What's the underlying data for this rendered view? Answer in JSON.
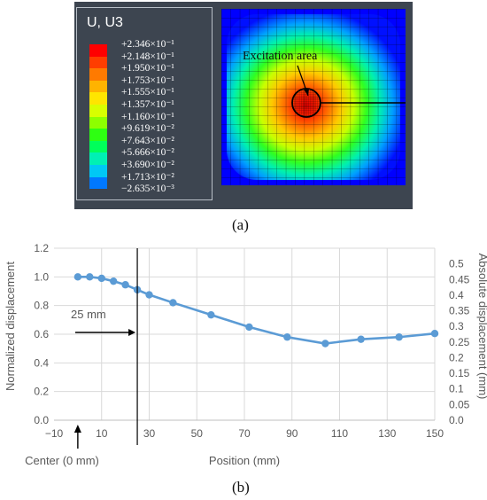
{
  "panel_a": {
    "legend_title": "U, U3",
    "legend_levels": [
      "+2.346×10⁻¹",
      "+2.148×10⁻¹",
      "+1.950×10⁻¹",
      "+1.753×10⁻¹",
      "+1.555×10⁻¹",
      "+1.357×10⁻¹",
      "+1.160×10⁻¹",
      "+9.619×10⁻²",
      "+7.643×10⁻²",
      "+5.666×10⁻²",
      "+3.690×10⁻²",
      "+1.713×10⁻²",
      "−2.635×10⁻³"
    ],
    "legend_colors": [
      "#ff0000",
      "#ff3d00",
      "#ff7a00",
      "#ffb300",
      "#ffe500",
      "#d8ff00",
      "#8dff00",
      "#2eff12",
      "#00ff5a",
      "#00f0b4",
      "#00c8f5",
      "#0078ff",
      "#0000ff"
    ],
    "annotation": "Excitation area",
    "caption": "(a)"
  },
  "chart_data": {
    "type": "line",
    "x": [
      0,
      5,
      10,
      15,
      20,
      25,
      30,
      40,
      56,
      72,
      88,
      104,
      119,
      135,
      150
    ],
    "series": [
      {
        "values": [
          1.0,
          1.0,
          0.99,
          0.97,
          0.945,
          0.91,
          0.875,
          0.82,
          0.735,
          0.65,
          0.58,
          0.535,
          0.565,
          0.58,
          0.605
        ]
      }
    ],
    "xlim": [
      -10,
      150
    ],
    "xticks": [
      "−10",
      "10",
      "30",
      "50",
      "70",
      "90",
      "110",
      "130",
      "150"
    ],
    "ylim": [
      0,
      1.2
    ],
    "yticks": [
      "0.0",
      "0.2",
      "0.4",
      "0.6",
      "0.8",
      "1.0",
      "1.2"
    ],
    "y2lim": [
      0,
      0.55
    ],
    "y2ticks": [
      "0.0",
      "0.05",
      "0.1",
      "0.15",
      "0.2",
      "0.25",
      "0.3",
      "0.35",
      "0.4",
      "0.45",
      "0.5"
    ],
    "xlabel": "Position (mm)",
    "ylabel": "Normalized displacement",
    "y2label": "Absolute displacement (mm)",
    "vline_x": 25,
    "annotations": {
      "mm25": "25 mm",
      "center": "Center (0 mm)"
    },
    "line_color": "#5b9bd5",
    "grid": true
  },
  "caption_b": "(b)"
}
